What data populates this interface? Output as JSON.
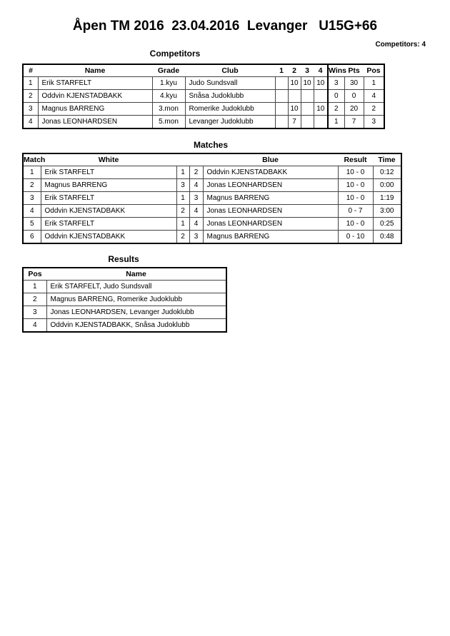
{
  "title": "Åpen TM 2016  23.04.2016  Levanger   U15G+66",
  "competitors_count": "Competitors: 4",
  "competitors": {
    "title": "Competitors",
    "headers": [
      "#",
      "Name",
      "Grade",
      "Club",
      "1",
      "2",
      "3",
      "4",
      "Wins",
      "Pts",
      "Pos"
    ],
    "rows": [
      [
        "1",
        "Erik STARFELT",
        "1.kyu",
        "Judo Sundsvall",
        "",
        "10",
        "10",
        "10",
        "3",
        "30",
        "1"
      ],
      [
        "2",
        "Oddvin KJENSTADBAKK",
        "4.kyu",
        "Snåsa Judoklubb",
        "",
        "",
        "",
        "",
        "0",
        "0",
        "4"
      ],
      [
        "3",
        "Magnus BARRENG",
        "3.mon",
        "Romerike Judoklubb",
        "",
        "10",
        "",
        "10",
        "2",
        "20",
        "2"
      ],
      [
        "4",
        "Jonas LEONHARDSEN",
        "5.mon",
        "Levanger Judoklubb",
        "",
        "7",
        "",
        "",
        "1",
        "7",
        "3"
      ]
    ]
  },
  "matches": {
    "title": "Matches",
    "headers": [
      "Match",
      "White",
      "",
      "",
      "Blue",
      "Result",
      "Time"
    ],
    "rows": [
      [
        "1",
        "Erik STARFELT",
        "1",
        "2",
        "Oddvin KJENSTADBAKK",
        "10 - 0",
        "0:12"
      ],
      [
        "2",
        "Magnus BARRENG",
        "3",
        "4",
        "Jonas LEONHARDSEN",
        "10 - 0",
        "0:00"
      ],
      [
        "3",
        "Erik STARFELT",
        "1",
        "3",
        "Magnus BARRENG",
        "10 - 0",
        "1:19"
      ],
      [
        "4",
        "Oddvin KJENSTADBAKK",
        "2",
        "4",
        "Jonas LEONHARDSEN",
        "0 - 7",
        "3:00"
      ],
      [
        "5",
        "Erik STARFELT",
        "1",
        "4",
        "Jonas LEONHARDSEN",
        "10 - 0",
        "0:25"
      ],
      [
        "6",
        "Oddvin KJENSTADBAKK",
        "2",
        "3",
        "Magnus BARRENG",
        "0 - 10",
        "0:48"
      ]
    ]
  },
  "results": {
    "title": "Results",
    "headers": [
      "Pos",
      "Name"
    ],
    "rows": [
      [
        "1",
        "Erik STARFELT, Judo Sundsvall"
      ],
      [
        "2",
        "Magnus BARRENG, Romerike Judoklubb"
      ],
      [
        "3",
        "Jonas LEONHARDSEN, Levanger Judoklubb"
      ],
      [
        "4",
        "Oddvin KJENSTADBAKK, Snåsa Judoklubb"
      ]
    ]
  }
}
